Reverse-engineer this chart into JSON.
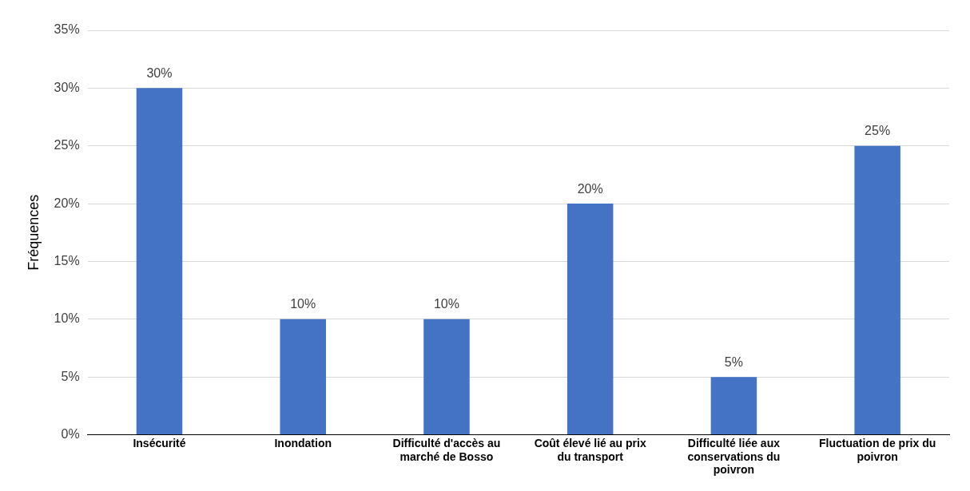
{
  "chart_data": {
    "type": "bar",
    "ylabel": "Fréquences",
    "categories": [
      "Insécurité",
      "Inondation",
      "Difficulté d'accès au marché de Bosso",
      "Coût élevé lié au prix du transport",
      "Difficulté liée aux conservations du poivron",
      "Fluctuation de prix du poivron"
    ],
    "values": [
      30,
      10,
      10,
      20,
      5,
      25
    ],
    "value_labels": [
      "30%",
      "10%",
      "10%",
      "20%",
      "5%",
      "25%"
    ],
    "color": "#4472c4",
    "ylim": [
      0,
      35
    ],
    "yticks": [
      {
        "value": 0,
        "label": "0%"
      },
      {
        "value": 5,
        "label": "5%"
      },
      {
        "value": 10,
        "label": "10%"
      },
      {
        "value": 15,
        "label": "15%"
      },
      {
        "value": 20,
        "label": "20%"
      },
      {
        "value": 25,
        "label": "25%"
      },
      {
        "value": 30,
        "label": "30%"
      },
      {
        "value": 35,
        "label": "35%"
      }
    ],
    "grid": "y",
    "legend": false
  }
}
